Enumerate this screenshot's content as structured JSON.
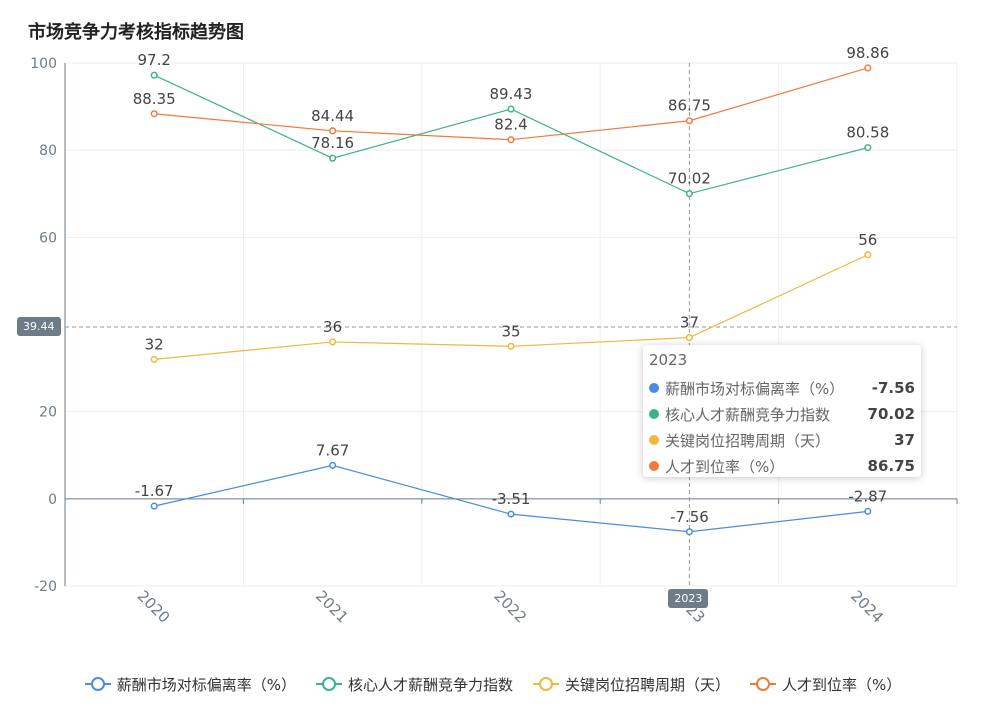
{
  "chart_data": {
    "type": "line",
    "title": "市场竞争力考核指标趋势图",
    "categories": [
      "2020",
      "2021",
      "2022",
      "2023",
      "2024"
    ],
    "ylim": [
      -20,
      100
    ],
    "yticks": [
      -20,
      0,
      20,
      60,
      80,
      100
    ],
    "series": [
      {
        "name": "薪酬市场对标偏离率（%）",
        "color": "#4a8be3",
        "values": [
          -1.67,
          7.67,
          -3.51,
          -7.56,
          -2.87
        ],
        "labels": [
          "-1.67",
          "7.67",
          "-3.51",
          "-7.56",
          "-2.87"
        ]
      },
      {
        "name": "核心人才薪酬竞争力指数",
        "color": "#3db28a",
        "values": [
          97.2,
          78.16,
          89.43,
          70.02,
          80.58
        ],
        "labels": [
          "97.2",
          "78.16",
          "89.43",
          "70.02",
          "80.58"
        ]
      },
      {
        "name": "关键岗位招聘周期（天）",
        "color": "#f0b83c",
        "values": [
          32,
          36,
          35,
          37,
          56
        ],
        "labels": [
          "32",
          "36",
          "35",
          "37",
          "56"
        ]
      },
      {
        "name": "人才到位率（%）",
        "color": "#ef7b3a",
        "values": [
          88.35,
          84.44,
          82.4,
          86.75,
          98.86
        ],
        "labels": [
          "88.35",
          "84.44",
          "82.4",
          "86.75",
          "98.86"
        ]
      }
    ],
    "crosshair": {
      "category": "2023",
      "y_label": "39.44"
    }
  },
  "tooltip": {
    "title": "2023",
    "rows": [
      {
        "name": "薪酬市场对标偏离率（%）",
        "value": "-7.56",
        "color": "#4a8be3"
      },
      {
        "name": "核心人才薪酬竞争力指数",
        "value": "70.02",
        "color": "#3db28a"
      },
      {
        "name": "关键岗位招聘周期（天）",
        "value": "37",
        "color": "#f0b83c"
      },
      {
        "name": "人才到位率（%）",
        "value": "86.75",
        "color": "#ef7b3a"
      }
    ]
  }
}
